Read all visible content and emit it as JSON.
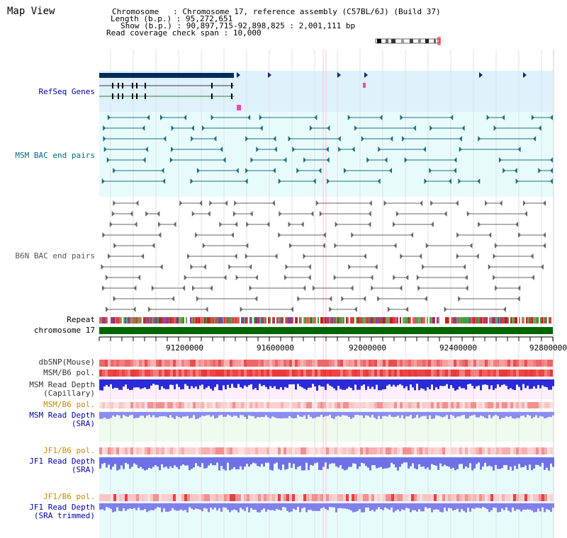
{
  "window": {
    "title": "Map View"
  },
  "info": {
    "chromosome_label": "Chromosome",
    "chromosome_value": "Chromosome 17, reference assembly (C57BL/6J) (Build 37)",
    "length_label": "Length (b.p.)",
    "length_value": "95,272,651",
    "show_label": "Show (b.p.)",
    "show_value": "90,897,715-92,898,825 : 2,001,111 bp",
    "coverage_label": "Read coverage check span",
    "coverage_value": "10,000"
  },
  "tracks": {
    "refseq": "RefSeq Genes",
    "msm_bac": "MSM BAC end pairs",
    "b6n_bac": "B6N BAC end pairs",
    "repeat": "Repeat",
    "chromosome": "chromosome 17",
    "dbsnp": "dbSNP(Mouse)",
    "msm_b6_pol_1": "MSM/B6 pol.",
    "msm_depth_cap_1": "MSM Read Depth",
    "msm_depth_cap_2": "(Capillary)",
    "msm_b6_pol_2": "MSM/B6 pol.",
    "msm_depth_sra_1": "MSM Read Depth",
    "msm_depth_sra_2": "(SRA)",
    "jf1_b6_pol_1": "JF1/B6 pol.",
    "jf1_depth_sra_1": "JF1 Read Depth",
    "jf1_depth_sra_2": "(SRA)",
    "jf1_b6_pol_2": "JF1/B6 pol.",
    "jf1_depth_trim_1": "JF1 Read Depth",
    "jf1_depth_trim_2": "(SRA trimmed)"
  },
  "axis": {
    "ticks": [
      "91200000",
      "91600000",
      "92000000",
      "92400000",
      "92800000"
    ]
  },
  "colors": {
    "refseq_label": "#0000aa",
    "msm_label": "#006b80",
    "b6n_label": "#555555",
    "pol_label_orange": "#cc8800",
    "depth_label_blue": "#0000aa",
    "chromosome_bar": "#006600",
    "refseq_bg": "#dff1fb",
    "bac_bg": "#e8fbfb"
  }
}
